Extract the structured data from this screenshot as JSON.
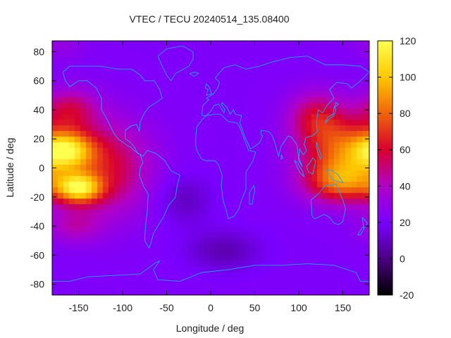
{
  "chart_data": {
    "type": "heatmap",
    "title": "VTEC / TECU 20240514_135.08400",
    "xlabel": "Longitude / deg",
    "ylabel": "Latitude / deg",
    "xlim": [
      -180,
      180
    ],
    "ylim": [
      -87.5,
      87.5
    ],
    "x_ticks": [
      -150,
      -100,
      -50,
      0,
      50,
      100,
      150
    ],
    "y_ticks": [
      -80,
      -60,
      -40,
      -20,
      0,
      20,
      40,
      60,
      80
    ],
    "colorbar": {
      "range": [
        -20,
        120
      ],
      "ticks": [
        -20,
        0,
        20,
        40,
        60,
        80,
        100,
        120
      ],
      "palette": [
        "#000000",
        "#4b0082",
        "#7a00ff",
        "#b000c8",
        "#d8002e",
        "#f0640a",
        "#ffc800",
        "#ffff50"
      ]
    },
    "background_level": 22,
    "features": [
      {
        "lon": -165,
        "lat": 12,
        "amplitude": 70,
        "width_lon": 22,
        "width_lat": 9
      },
      {
        "lon": -150,
        "lat": -14,
        "amplitude": 72,
        "width_lon": 18,
        "width_lat": 7
      },
      {
        "lon": -120,
        "lat": 0,
        "amplitude": 38,
        "width_lon": 35,
        "width_lat": 22
      },
      {
        "lon": -160,
        "lat": 40,
        "amplitude": 30,
        "width_lon": 22,
        "width_lat": 10
      },
      {
        "lon": -155,
        "lat": -40,
        "amplitude": 18,
        "width_lon": 22,
        "width_lat": 8
      },
      {
        "lon": 150,
        "lat": 12,
        "amplitude": 52,
        "width_lon": 32,
        "width_lat": 16
      },
      {
        "lon": 150,
        "lat": -10,
        "amplitude": 50,
        "width_lon": 30,
        "width_lat": 10
      },
      {
        "lon": 120,
        "lat": 35,
        "amplitude": 32,
        "width_lon": 22,
        "width_lat": 12
      },
      {
        "lon": -30,
        "lat": -22,
        "amplitude": -12,
        "width_lon": 22,
        "width_lat": 12
      },
      {
        "lon": 15,
        "lat": -57,
        "amplitude": -14,
        "width_lon": 30,
        "width_lat": 10
      },
      {
        "lon": -170,
        "lat": 85,
        "amplitude": 8,
        "width_lon": 20,
        "width_lat": 8
      }
    ],
    "coastlines": [
      {
        "name": "north-america",
        "points": [
          [
            -168,
            66
          ],
          [
            -160,
            70
          ],
          [
            -140,
            70
          ],
          [
            -125,
            70
          ],
          [
            -105,
            68
          ],
          [
            -90,
            68
          ],
          [
            -80,
            64
          ],
          [
            -75,
            60
          ],
          [
            -64,
            60
          ],
          [
            -58,
            54
          ],
          [
            -55,
            48
          ],
          [
            -62,
            45
          ],
          [
            -70,
            42
          ],
          [
            -75,
            38
          ],
          [
            -80,
            32
          ],
          [
            -81,
            25
          ],
          [
            -84,
            30
          ],
          [
            -90,
            29
          ],
          [
            -97,
            26
          ],
          [
            -97,
            20
          ],
          [
            -92,
            18
          ],
          [
            -87,
            15
          ],
          [
            -83,
            10
          ],
          [
            -79,
            9
          ],
          [
            -85,
            11
          ],
          [
            -90,
            14
          ],
          [
            -96,
            16
          ],
          [
            -105,
            20
          ],
          [
            -110,
            24
          ],
          [
            -115,
            30
          ],
          [
            -118,
            34
          ],
          [
            -124,
            40
          ],
          [
            -124,
            48
          ],
          [
            -130,
            55
          ],
          [
            -140,
            60
          ],
          [
            -150,
            60
          ],
          [
            -160,
            56
          ],
          [
            -165,
            60
          ],
          [
            -168,
            66
          ]
        ]
      },
      {
        "name": "south-america",
        "points": [
          [
            -80,
            9
          ],
          [
            -77,
            8
          ],
          [
            -72,
            12
          ],
          [
            -62,
            10
          ],
          [
            -52,
            5
          ],
          [
            -45,
            -2
          ],
          [
            -35,
            -5
          ],
          [
            -38,
            -12
          ],
          [
            -40,
            -20
          ],
          [
            -48,
            -26
          ],
          [
            -53,
            -33
          ],
          [
            -58,
            -38
          ],
          [
            -65,
            -45
          ],
          [
            -68,
            -52
          ],
          [
            -70,
            -55
          ],
          [
            -75,
            -50
          ],
          [
            -74,
            -40
          ],
          [
            -72,
            -30
          ],
          [
            -71,
            -18
          ],
          [
            -76,
            -13
          ],
          [
            -81,
            -5
          ],
          [
            -80,
            0
          ],
          [
            -77,
            4
          ],
          [
            -80,
            9
          ]
        ]
      },
      {
        "name": "greenland",
        "points": [
          [
            -60,
            77
          ],
          [
            -50,
            82
          ],
          [
            -32,
            84
          ],
          [
            -20,
            80
          ],
          [
            -20,
            75
          ],
          [
            -25,
            70
          ],
          [
            -40,
            65
          ],
          [
            -45,
            60
          ],
          [
            -50,
            64
          ],
          [
            -55,
            70
          ],
          [
            -60,
            77
          ]
        ]
      },
      {
        "name": "africa",
        "points": [
          [
            -17,
            21
          ],
          [
            -16,
            28
          ],
          [
            -10,
            33
          ],
          [
            -5,
            36
          ],
          [
            5,
            37
          ],
          [
            11,
            37
          ],
          [
            20,
            32
          ],
          [
            30,
            31
          ],
          [
            33,
            28
          ],
          [
            38,
            20
          ],
          [
            43,
            12
          ],
          [
            51,
            11
          ],
          [
            48,
            5
          ],
          [
            40,
            -3
          ],
          [
            40,
            -15
          ],
          [
            35,
            -22
          ],
          [
            32,
            -28
          ],
          [
            27,
            -33
          ],
          [
            20,
            -35
          ],
          [
            18,
            -30
          ],
          [
            14,
            -22
          ],
          [
            12,
            -12
          ],
          [
            13,
            -5
          ],
          [
            9,
            2
          ],
          [
            5,
            5
          ],
          [
            -5,
            5
          ],
          [
            -10,
            6
          ],
          [
            -15,
            11
          ],
          [
            -17,
            15
          ],
          [
            -17,
            21
          ]
        ]
      },
      {
        "name": "eurasia",
        "points": [
          [
            -10,
            36
          ],
          [
            -9,
            43
          ],
          [
            -2,
            47
          ],
          [
            -5,
            48
          ],
          [
            3,
            51
          ],
          [
            8,
            55
          ],
          [
            10,
            59
          ],
          [
            5,
            62
          ],
          [
            15,
            69
          ],
          [
            28,
            71
          ],
          [
            40,
            68
          ],
          [
            55,
            70
          ],
          [
            70,
            73
          ],
          [
            90,
            76
          ],
          [
            110,
            77
          ],
          [
            130,
            71
          ],
          [
            150,
            71
          ],
          [
            170,
            70
          ],
          [
            180,
            66
          ],
          [
            170,
            60
          ],
          [
            160,
            55
          ],
          [
            155,
            58
          ],
          [
            143,
            59
          ],
          [
            135,
            54
          ],
          [
            140,
            48
          ],
          [
            132,
            43
          ],
          [
            127,
            38
          ],
          [
            122,
            40
          ],
          [
            120,
            31
          ],
          [
            121,
            25
          ],
          [
            115,
            22
          ],
          [
            108,
            21
          ],
          [
            106,
            16
          ],
          [
            109,
            12
          ],
          [
            105,
            9
          ],
          [
            101,
            13
          ],
          [
            100,
            7
          ],
          [
            104,
            1
          ],
          [
            100,
            5
          ],
          [
            98,
            16
          ],
          [
            92,
            21
          ],
          [
            88,
            22
          ],
          [
            80,
            15
          ],
          [
            77,
            8
          ],
          [
            73,
            17
          ],
          [
            70,
            22
          ],
          [
            66,
            25
          ],
          [
            57,
            26
          ],
          [
            57,
            23
          ],
          [
            59,
            22
          ],
          [
            55,
            17
          ],
          [
            45,
            13
          ],
          [
            43,
            16
          ],
          [
            39,
            21
          ],
          [
            35,
            28
          ],
          [
            33,
            31
          ],
          [
            35,
            36
          ],
          [
            28,
            37
          ],
          [
            26,
            40
          ],
          [
            22,
            37
          ],
          [
            20,
            40
          ],
          [
            18,
            42
          ],
          [
            13,
            45
          ],
          [
            12,
            44
          ],
          [
            16,
            40
          ],
          [
            15,
            38
          ],
          [
            11,
            42
          ],
          [
            9,
            44
          ],
          [
            4,
            43
          ],
          [
            0,
            39
          ],
          [
            -5,
            36
          ],
          [
            -10,
            36
          ]
        ]
      },
      {
        "name": "australia",
        "points": [
          [
            114,
            -22
          ],
          [
            122,
            -18
          ],
          [
            130,
            -12
          ],
          [
            137,
            -12
          ],
          [
            142,
            -11
          ],
          [
            145,
            -15
          ],
          [
            150,
            -22
          ],
          [
            153,
            -28
          ],
          [
            150,
            -37
          ],
          [
            145,
            -39
          ],
          [
            140,
            -38
          ],
          [
            135,
            -34
          ],
          [
            129,
            -32
          ],
          [
            118,
            -35
          ],
          [
            115,
            -33
          ],
          [
            114,
            -22
          ]
        ]
      },
      {
        "name": "antarctica",
        "points": [
          [
            -180,
            -78
          ],
          [
            -160,
            -78
          ],
          [
            -140,
            -75
          ],
          [
            -110,
            -74
          ],
          [
            -80,
            -73
          ],
          [
            -62,
            -65
          ],
          [
            -58,
            -64
          ],
          [
            -65,
            -70
          ],
          [
            -60,
            -77
          ],
          [
            -35,
            -78
          ],
          [
            -10,
            -72
          ],
          [
            20,
            -70
          ],
          [
            50,
            -67
          ],
          [
            80,
            -67
          ],
          [
            110,
            -66
          ],
          [
            140,
            -67
          ],
          [
            165,
            -72
          ],
          [
            170,
            -78
          ],
          [
            180,
            -78
          ]
        ]
      },
      {
        "name": "british-isles",
        "points": [
          [
            -5,
            50
          ],
          [
            1,
            51
          ],
          [
            0,
            53
          ],
          [
            -2,
            56
          ],
          [
            -5,
            58
          ],
          [
            -6,
            55
          ],
          [
            -3,
            54
          ],
          [
            -5,
            50
          ]
        ]
      },
      {
        "name": "japan",
        "points": [
          [
            130,
            31
          ],
          [
            135,
            34
          ],
          [
            140,
            36
          ],
          [
            142,
            40
          ],
          [
            141,
            42
          ],
          [
            145,
            44
          ],
          [
            142,
            45
          ],
          [
            140,
            41
          ],
          [
            139,
            37
          ],
          [
            133,
            35
          ],
          [
            130,
            31
          ]
        ]
      },
      {
        "name": "borneo",
        "points": [
          [
            109,
            1
          ],
          [
            112,
            3
          ],
          [
            116,
            7
          ],
          [
            119,
            5
          ],
          [
            118,
            1
          ],
          [
            116,
            -4
          ],
          [
            111,
            -3
          ],
          [
            109,
            1
          ]
        ]
      },
      {
        "name": "sumatra",
        "points": [
          [
            95,
            5
          ],
          [
            98,
            4
          ],
          [
            104,
            -2
          ],
          [
            106,
            -6
          ],
          [
            101,
            -3
          ],
          [
            95,
            5
          ]
        ]
      },
      {
        "name": "new-guinea",
        "points": [
          [
            131,
            -1
          ],
          [
            138,
            -2
          ],
          [
            145,
            -5
          ],
          [
            150,
            -10
          ],
          [
            143,
            -9
          ],
          [
            138,
            -8
          ],
          [
            134,
            -4
          ],
          [
            131,
            -1
          ]
        ]
      },
      {
        "name": "madagascar",
        "points": [
          [
            44,
            -25
          ],
          [
            47,
            -25
          ],
          [
            50,
            -15
          ],
          [
            49,
            -12
          ],
          [
            44,
            -17
          ],
          [
            44,
            -25
          ]
        ]
      },
      {
        "name": "new-zealand",
        "points": [
          [
            172,
            -34
          ],
          [
            178,
            -38
          ],
          [
            175,
            -41
          ],
          [
            172,
            -41
          ],
          [
            167,
            -46
          ],
          [
            170,
            -46
          ],
          [
            174,
            -42
          ],
          [
            172,
            -34
          ]
        ]
      },
      {
        "name": "iceland",
        "points": [
          [
            -24,
            65
          ],
          [
            -18,
            66
          ],
          [
            -14,
            65
          ],
          [
            -19,
            63
          ],
          [
            -24,
            65
          ]
        ]
      },
      {
        "name": "philippines",
        "points": [
          [
            120,
            18
          ],
          [
            122,
            14
          ],
          [
            126,
            8
          ],
          [
            125,
            6
          ],
          [
            122,
            10
          ],
          [
            120,
            14
          ],
          [
            120,
            18
          ]
        ]
      },
      {
        "name": "sri-lanka",
        "points": [
          [
            80,
            9
          ],
          [
            82,
            7
          ],
          [
            80,
            6
          ],
          [
            80,
            9
          ]
        ]
      }
    ]
  }
}
